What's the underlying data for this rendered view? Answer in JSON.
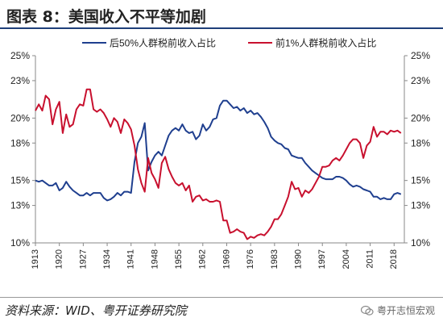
{
  "title": "图表 8：美国收入不平等加剧",
  "source": "资料来源：WID、粤开证券研究院",
  "watermark": "粤开志恒宏观",
  "colors": {
    "bottom50": "#1f3f8f",
    "top1": "#c8102e",
    "axis": "#888888",
    "text": "#222222"
  },
  "chart_data": {
    "type": "line",
    "title": "",
    "xlabel": "",
    "ylabel": "",
    "xlim": [
      1913,
      2021
    ],
    "ylim": [
      10,
      25
    ],
    "y_ticks": [
      10,
      13,
      15,
      18,
      20,
      23,
      25
    ],
    "y_tick_labels": [
      "10%",
      "13%",
      "15%",
      "18%",
      "20%",
      "23%",
      "25%"
    ],
    "x_ticks": [
      1913,
      1920,
      1927,
      1934,
      1941,
      1948,
      1955,
      1962,
      1969,
      1976,
      1983,
      1990,
      1997,
      2004,
      2011,
      2018
    ],
    "x_tick_labels": [
      "1913",
      "1920",
      "1927",
      "1934",
      "1941",
      "1948",
      "1955",
      "1962",
      "1969",
      "1976",
      "1983",
      "1990",
      "1997",
      "2004",
      "2011",
      "2018"
    ],
    "legend_position": "top",
    "grid": false,
    "secondary_y_axis": true,
    "series": [
      {
        "name": "后50%人群税前收入占比",
        "color": "#1f3f8f",
        "points": [
          [
            1913,
            15.0
          ],
          [
            1914,
            14.9
          ],
          [
            1915,
            15.0
          ],
          [
            1916,
            14.8
          ],
          [
            1917,
            14.6
          ],
          [
            1918,
            14.6
          ],
          [
            1919,
            14.8
          ],
          [
            1920,
            14.2
          ],
          [
            1921,
            14.4
          ],
          [
            1922,
            14.9
          ],
          [
            1923,
            14.5
          ],
          [
            1924,
            14.2
          ],
          [
            1925,
            14.0
          ],
          [
            1926,
            13.8
          ],
          [
            1927,
            13.8
          ],
          [
            1928,
            14.0
          ],
          [
            1929,
            13.8
          ],
          [
            1930,
            14.0
          ],
          [
            1931,
            14.0
          ],
          [
            1932,
            14.0
          ],
          [
            1933,
            13.6
          ],
          [
            1934,
            13.4
          ],
          [
            1935,
            13.5
          ],
          [
            1936,
            13.7
          ],
          [
            1937,
            14.0
          ],
          [
            1938,
            13.8
          ],
          [
            1939,
            14.1
          ],
          [
            1940,
            14.1
          ],
          [
            1941,
            14.0
          ],
          [
            1942,
            16.5
          ],
          [
            1943,
            18.0
          ],
          [
            1944,
            18.5
          ],
          [
            1945,
            19.6
          ],
          [
            1946,
            15.8
          ],
          [
            1947,
            16.5
          ],
          [
            1948,
            17.0
          ],
          [
            1949,
            17.3
          ],
          [
            1950,
            17.0
          ],
          [
            1951,
            17.8
          ],
          [
            1952,
            18.6
          ],
          [
            1953,
            19.0
          ],
          [
            1954,
            19.2
          ],
          [
            1955,
            19.0
          ],
          [
            1956,
            19.5
          ],
          [
            1957,
            19.0
          ],
          [
            1958,
            18.8
          ],
          [
            1959,
            18.9
          ],
          [
            1960,
            18.3
          ],
          [
            1961,
            18.6
          ],
          [
            1962,
            19.5
          ],
          [
            1963,
            19.0
          ],
          [
            1964,
            19.3
          ],
          [
            1965,
            19.9
          ],
          [
            1966,
            20.0
          ],
          [
            1967,
            21.0
          ],
          [
            1968,
            21.4
          ],
          [
            1969,
            21.4
          ],
          [
            1970,
            21.1
          ],
          [
            1971,
            20.8
          ],
          [
            1972,
            20.9
          ],
          [
            1973,
            20.6
          ],
          [
            1974,
            20.8
          ],
          [
            1975,
            20.4
          ],
          [
            1976,
            20.6
          ],
          [
            1977,
            20.3
          ],
          [
            1978,
            20.4
          ],
          [
            1979,
            20.1
          ],
          [
            1980,
            19.7
          ],
          [
            1981,
            19.2
          ],
          [
            1982,
            18.5
          ],
          [
            1983,
            18.2
          ],
          [
            1984,
            18.0
          ],
          [
            1985,
            17.9
          ],
          [
            1986,
            17.6
          ],
          [
            1987,
            17.5
          ],
          [
            1988,
            17.0
          ],
          [
            1989,
            16.9
          ],
          [
            1990,
            16.8
          ],
          [
            1991,
            16.8
          ],
          [
            1992,
            16.4
          ],
          [
            1993,
            16.1
          ],
          [
            1994,
            15.8
          ],
          [
            1995,
            15.6
          ],
          [
            1996,
            15.4
          ],
          [
            1997,
            15.2
          ],
          [
            1998,
            15.1
          ],
          [
            1999,
            15.1
          ],
          [
            2000,
            15.1
          ],
          [
            2001,
            15.3
          ],
          [
            2002,
            15.3
          ],
          [
            2003,
            15.2
          ],
          [
            2004,
            15.0
          ],
          [
            2005,
            14.7
          ],
          [
            2006,
            14.5
          ],
          [
            2007,
            14.6
          ],
          [
            2008,
            14.5
          ],
          [
            2009,
            14.3
          ],
          [
            2010,
            14.2
          ],
          [
            2011,
            14.1
          ],
          [
            2012,
            13.7
          ],
          [
            2013,
            13.7
          ],
          [
            2014,
            13.5
          ],
          [
            2015,
            13.6
          ],
          [
            2016,
            13.5
          ],
          [
            2017,
            13.5
          ],
          [
            2018,
            13.9
          ],
          [
            2019,
            14.0
          ],
          [
            2020,
            13.9
          ]
        ]
      },
      {
        "name": "前1%人群税前收入占比",
        "color": "#c8102e",
        "points": [
          [
            1913,
            20.6
          ],
          [
            1914,
            21.1
          ],
          [
            1915,
            20.6
          ],
          [
            1916,
            21.8
          ],
          [
            1917,
            21.5
          ],
          [
            1918,
            19.5
          ],
          [
            1919,
            20.7
          ],
          [
            1920,
            21.3
          ],
          [
            1921,
            18.8
          ],
          [
            1922,
            20.3
          ],
          [
            1923,
            19.3
          ],
          [
            1924,
            19.5
          ],
          [
            1925,
            20.7
          ],
          [
            1926,
            21.1
          ],
          [
            1927,
            21.0
          ],
          [
            1928,
            22.3
          ],
          [
            1929,
            22.3
          ],
          [
            1930,
            20.7
          ],
          [
            1931,
            20.5
          ],
          [
            1932,
            20.7
          ],
          [
            1933,
            20.4
          ],
          [
            1934,
            19.9
          ],
          [
            1935,
            19.3
          ],
          [
            1936,
            20.0
          ],
          [
            1937,
            19.7
          ],
          [
            1938,
            18.8
          ],
          [
            1939,
            19.9
          ],
          [
            1940,
            19.6
          ],
          [
            1941,
            19.1
          ],
          [
            1942,
            17.8
          ],
          [
            1943,
            15.9
          ],
          [
            1944,
            14.8
          ],
          [
            1945,
            14.1
          ],
          [
            1946,
            16.8
          ],
          [
            1947,
            15.6
          ],
          [
            1948,
            15.1
          ],
          [
            1949,
            14.4
          ],
          [
            1950,
            16.4
          ],
          [
            1951,
            16.9
          ],
          [
            1952,
            15.9
          ],
          [
            1953,
            15.3
          ],
          [
            1954,
            14.8
          ],
          [
            1955,
            14.6
          ],
          [
            1956,
            14.8
          ],
          [
            1957,
            14.2
          ],
          [
            1958,
            14.6
          ],
          [
            1959,
            13.3
          ],
          [
            1960,
            13.7
          ],
          [
            1961,
            13.8
          ],
          [
            1962,
            13.4
          ],
          [
            1963,
            13.5
          ],
          [
            1964,
            13.3
          ],
          [
            1965,
            13.3
          ],
          [
            1966,
            13.4
          ],
          [
            1967,
            13.3
          ],
          [
            1968,
            11.8
          ],
          [
            1969,
            11.8
          ],
          [
            1970,
            10.8
          ],
          [
            1971,
            10.9
          ],
          [
            1972,
            11.1
          ],
          [
            1973,
            10.9
          ],
          [
            1974,
            10.8
          ],
          [
            1975,
            10.3
          ],
          [
            1976,
            10.5
          ],
          [
            1977,
            10.4
          ],
          [
            1978,
            10.6
          ],
          [
            1979,
            10.7
          ],
          [
            1980,
            10.6
          ],
          [
            1981,
            10.9
          ],
          [
            1982,
            11.3
          ],
          [
            1983,
            11.9
          ],
          [
            1984,
            11.9
          ],
          [
            1985,
            12.3
          ],
          [
            1986,
            13.0
          ],
          [
            1987,
            13.7
          ],
          [
            1988,
            14.9
          ],
          [
            1989,
            14.3
          ],
          [
            1990,
            14.4
          ],
          [
            1991,
            13.7
          ],
          [
            1992,
            14.2
          ],
          [
            1993,
            14.0
          ],
          [
            1994,
            14.3
          ],
          [
            1995,
            14.8
          ],
          [
            1996,
            15.3
          ],
          [
            1997,
            16.1
          ],
          [
            1998,
            16.1
          ],
          [
            1999,
            16.2
          ],
          [
            2000,
            16.6
          ],
          [
            2001,
            16.8
          ],
          [
            2002,
            16.6
          ],
          [
            2003,
            17.0
          ],
          [
            2004,
            17.5
          ],
          [
            2005,
            18.0
          ],
          [
            2006,
            18.3
          ],
          [
            2007,
            18.3
          ],
          [
            2008,
            18.0
          ],
          [
            2009,
            16.8
          ],
          [
            2010,
            17.8
          ],
          [
            2011,
            18.1
          ],
          [
            2012,
            19.3
          ],
          [
            2013,
            18.5
          ],
          [
            2014,
            18.9
          ],
          [
            2015,
            18.9
          ],
          [
            2016,
            18.7
          ],
          [
            2017,
            19.0
          ],
          [
            2018,
            18.9
          ],
          [
            2019,
            19.0
          ],
          [
            2020,
            18.8
          ]
        ]
      }
    ]
  }
}
